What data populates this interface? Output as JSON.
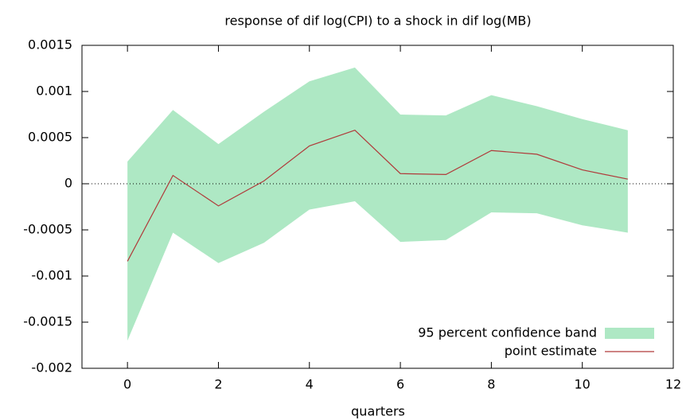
{
  "chart_data": {
    "type": "line",
    "title": "response of dif log(CPI) to a shock in dif log(MB)",
    "x_label": "quarters",
    "x": [
      0,
      1,
      2,
      3,
      4,
      5,
      6,
      7,
      8,
      9,
      10,
      11
    ],
    "band": {
      "name": "95 percent confidence band",
      "color": "#aee8c4",
      "upper": [
        0.00024,
        0.0008,
        0.00043,
        0.00078,
        0.00111,
        0.00126,
        0.00075,
        0.00074,
        0.00096,
        0.00084,
        0.0007,
        0.00058
      ],
      "lower": [
        -0.0017,
        -0.00053,
        -0.00086,
        -0.00064,
        -0.00028,
        -0.00019,
        -0.00063,
        -0.00061,
        -0.00031,
        -0.00032,
        -0.00045,
        -0.00053
      ]
    },
    "series": [
      {
        "name": "point estimate",
        "color": "#b03a3a",
        "values": [
          -0.00084,
          9e-05,
          -0.00024,
          3e-05,
          0.00041,
          0.00058,
          0.00011,
          0.0001,
          0.00036,
          0.00032,
          0.00015,
          5e-05
        ]
      }
    ],
    "xlim": [
      -1,
      12
    ],
    "xticks": [
      0,
      2,
      4,
      6,
      8,
      10,
      12
    ],
    "ylim": [
      -0.002,
      0.0015
    ],
    "yticks": [
      -0.002,
      -0.0015,
      -0.001,
      -0.0005,
      0,
      0.0005,
      0.001,
      0.0015
    ],
    "zero_line": true,
    "legend": "bottom-right"
  }
}
